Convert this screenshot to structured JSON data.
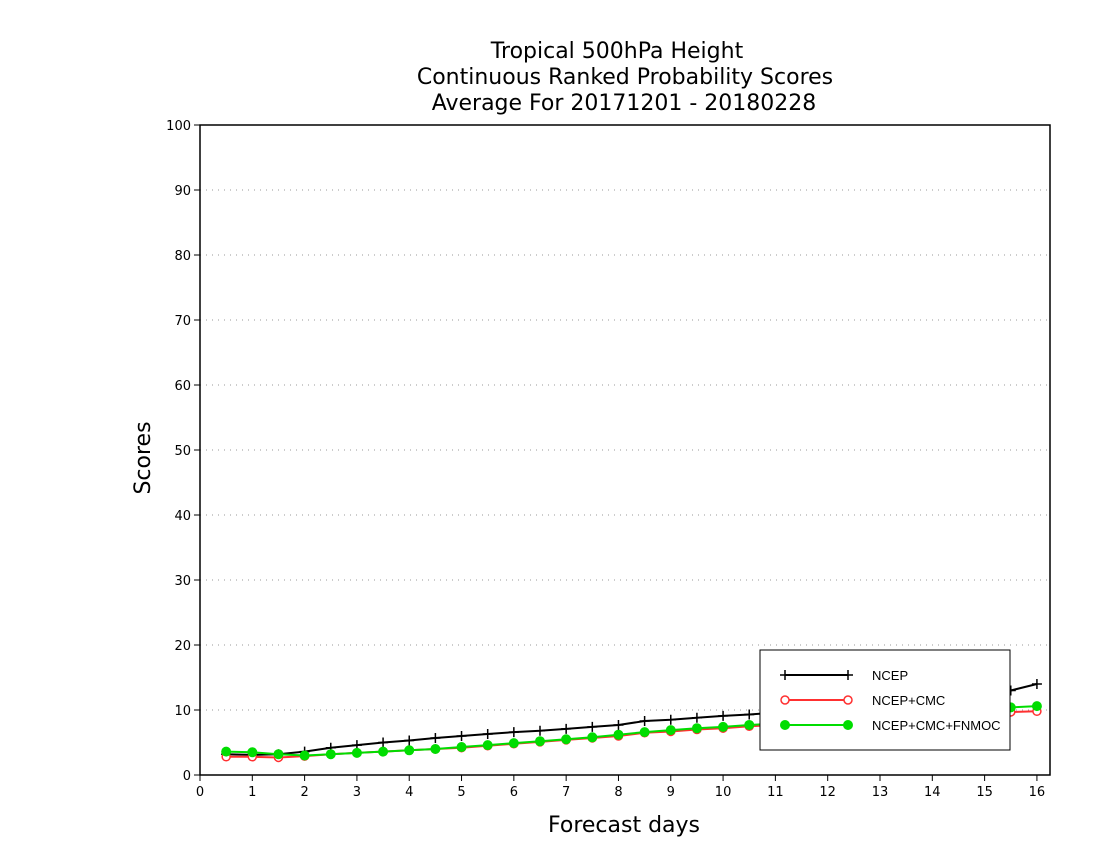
{
  "chart_data": {
    "type": "line",
    "title": [
      "Tropical 500hPa Height",
      "Continuous Ranked Probability Scores",
      "Average For 20171201 - 20180228"
    ],
    "xlabel": "Forecast days",
    "ylabel": "Scores",
    "xlim": [
      0,
      16.25
    ],
    "ylim": [
      0,
      100
    ],
    "xticks": [
      0,
      1,
      2,
      3,
      4,
      5,
      6,
      7,
      8,
      9,
      10,
      11,
      12,
      13,
      14,
      15,
      16
    ],
    "yticks": [
      0,
      10,
      20,
      30,
      40,
      50,
      60,
      70,
      80,
      90,
      100
    ],
    "grid": "horizontal dotted",
    "legend_position": "bottom-right",
    "x": [
      0.5,
      1,
      1.5,
      2,
      2.5,
      3,
      3.5,
      4,
      4.5,
      5,
      5.5,
      6,
      6.5,
      7,
      7.5,
      8,
      8.5,
      9,
      9.5,
      10,
      10.5,
      11,
      11.5,
      12,
      12.5,
      13,
      13.5,
      14,
      14.5,
      15,
      15.5,
      16
    ],
    "series": [
      {
        "name": "NCEP",
        "color": "#000000",
        "marker": "plus",
        "values": [
          3.2,
          3.1,
          3.2,
          3.6,
          4.2,
          4.6,
          5.0,
          5.3,
          5.7,
          6.0,
          6.3,
          6.6,
          6.8,
          7.1,
          7.4,
          7.7,
          8.3,
          8.5,
          8.8,
          9.1,
          9.3,
          9.6,
          9.9,
          10.2,
          10.5,
          10.8,
          11.2,
          11.7,
          12.1,
          12.7,
          13.0,
          14.0
        ]
      },
      {
        "name": "NCEP+CMC",
        "color": "#ff3030",
        "marker": "open-circle",
        "values": [
          2.8,
          2.8,
          2.7,
          2.9,
          3.2,
          3.4,
          3.6,
          3.8,
          4.0,
          4.2,
          4.5,
          4.8,
          5.1,
          5.4,
          5.7,
          6.0,
          6.5,
          6.7,
          7.0,
          7.2,
          7.5,
          7.7,
          8.0,
          8.2,
          8.4,
          8.7,
          8.9,
          9.2,
          9.4,
          9.6,
          9.7,
          9.8
        ]
      },
      {
        "name": "NCEP+CMC+FNMOC",
        "color": "#00dd00",
        "marker": "filled-circle",
        "values": [
          3.6,
          3.5,
          3.2,
          3.0,
          3.2,
          3.4,
          3.6,
          3.8,
          4.0,
          4.3,
          4.6,
          4.9,
          5.2,
          5.5,
          5.8,
          6.2,
          6.6,
          6.9,
          7.2,
          7.4,
          7.7,
          7.9,
          8.2,
          8.4,
          8.7,
          9.0,
          9.3,
          9.5,
          9.8,
          10.1,
          10.4,
          10.6
        ]
      }
    ]
  }
}
